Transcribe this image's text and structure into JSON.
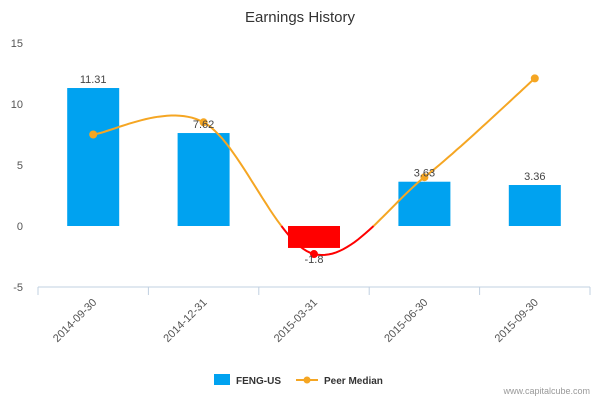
{
  "chart_data": {
    "type": "bar",
    "title": "Earnings History",
    "categories": [
      "2014-09-30",
      "2014-12-31",
      "2015-03-31",
      "2015-06-30",
      "2015-09-30"
    ],
    "series": [
      {
        "name": "FENG-US",
        "type": "bar",
        "values": [
          11.31,
          7.62,
          -1.8,
          3.63,
          3.36
        ],
        "data_labels": [
          "11.31",
          "7.62",
          "-1.8",
          "3.63",
          "3.36"
        ],
        "color": "#00a2f0",
        "negative_color": "#ff0000"
      },
      {
        "name": "Peer Median",
        "type": "line",
        "values": [
          7.5,
          8.5,
          -2.3,
          4.0,
          12.1
        ],
        "color": "#f5a623",
        "negative_color": "#ff0000"
      }
    ],
    "ylim": [
      -5,
      15
    ],
    "yticks": [
      "-5",
      "0",
      "5",
      "10",
      "15"
    ],
    "grid": false,
    "legend_position": "bottom"
  },
  "credit": "www.capitalcube.com"
}
